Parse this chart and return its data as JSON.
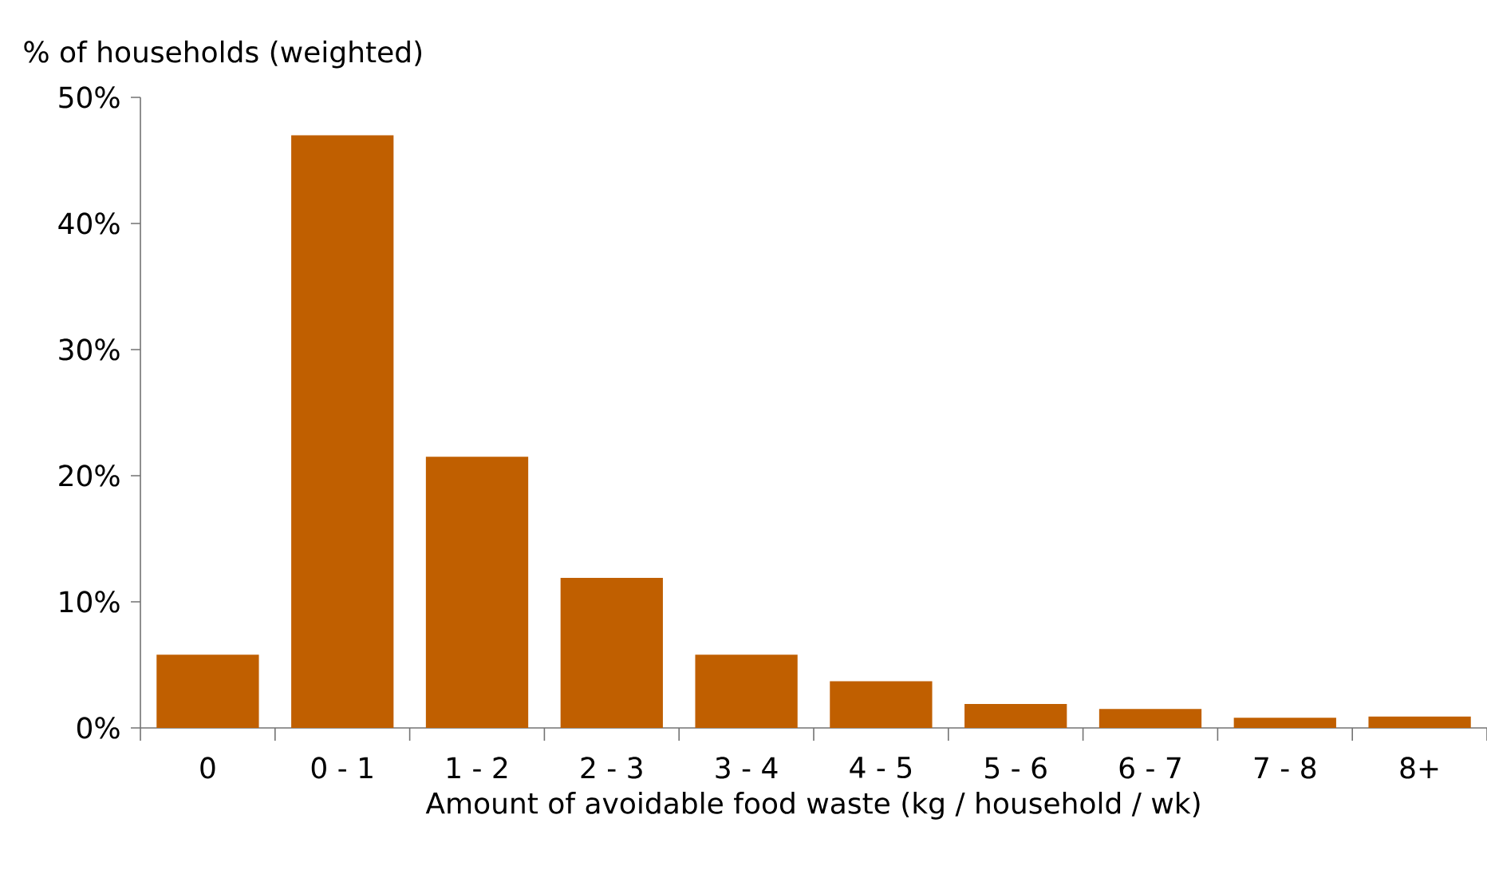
{
  "chart_data": {
    "type": "bar",
    "ylabel": "% of households (weighted)",
    "xlabel": "Amount of avoidable food waste (kg / household / wk)",
    "categories": [
      "0",
      "0 - 1",
      "1 - 2",
      "2 - 3",
      "3 - 4",
      "4 - 5",
      "5 - 6",
      "6 - 7",
      "7 - 8",
      "8+"
    ],
    "values": [
      5.8,
      47.0,
      21.5,
      11.9,
      5.8,
      3.7,
      1.9,
      1.5,
      0.8,
      0.9
    ],
    "color": "#c05f00",
    "ylim": [
      0,
      50
    ],
    "yticks": [
      {
        "value": 0,
        "label": "0%"
      },
      {
        "value": 10,
        "label": "10%"
      },
      {
        "value": 20,
        "label": "20%"
      },
      {
        "value": 30,
        "label": "30%"
      },
      {
        "value": 40,
        "label": "40%"
      },
      {
        "value": 50,
        "label": "50%"
      }
    ],
    "grid": false
  }
}
